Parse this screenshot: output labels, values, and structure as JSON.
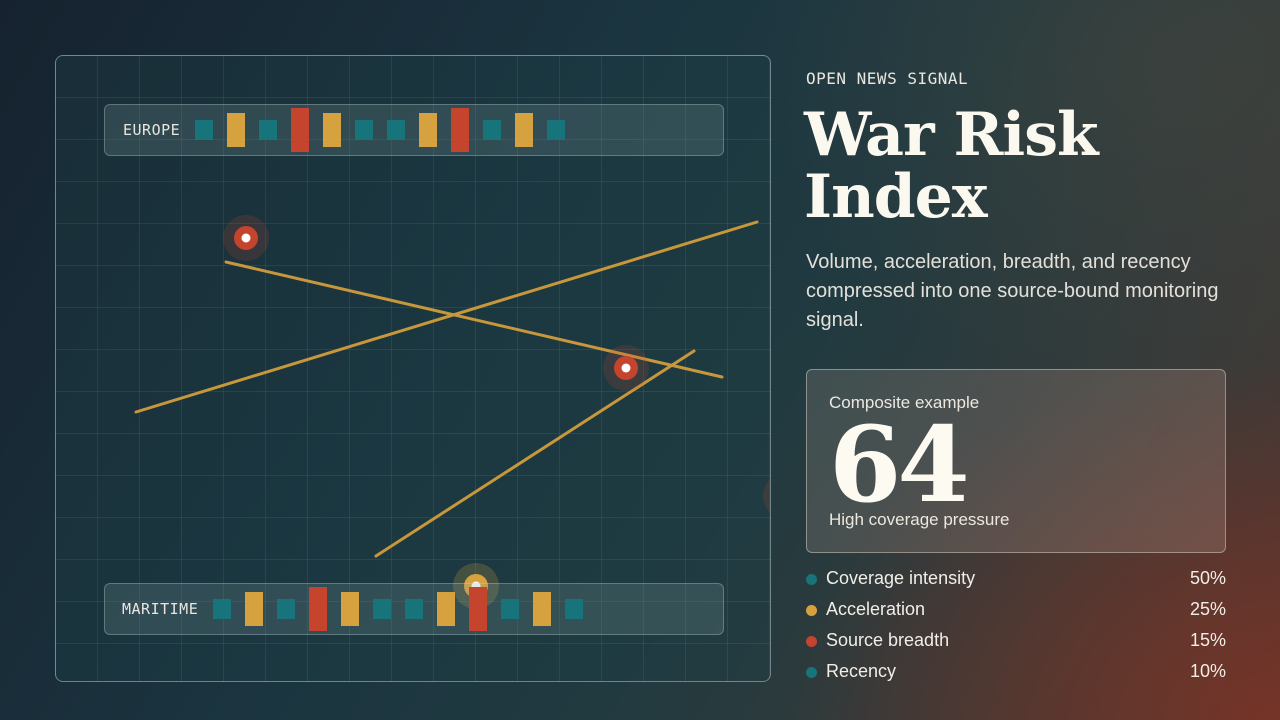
{
  "kicker": "OPEN NEWS SIGNAL",
  "title": "War Risk Index",
  "subtitle": "Volume, acceleration, breadth, and recency compressed into one source-bound monitoring signal.",
  "colors": {
    "teal": "#17747a",
    "gold": "#d6a23f",
    "red": "#c4442e",
    "line": "#c8973c"
  },
  "regions": {
    "europe": {
      "label": "EUROPE",
      "ticks": [
        "teal",
        "gold",
        "teal",
        "red",
        "gold",
        "teal",
        "teal",
        "gold",
        "red",
        "teal",
        "gold",
        "teal"
      ]
    },
    "maritime": {
      "label": "MARITIME",
      "ticks": [
        "teal",
        "gold",
        "teal",
        "red",
        "gold",
        "teal",
        "teal",
        "gold",
        "red",
        "teal",
        "gold",
        "teal"
      ]
    }
  },
  "composite": {
    "label": "Composite example",
    "value": "64",
    "note": "High coverage pressure"
  },
  "legend": [
    {
      "label": "Coverage intensity",
      "value": "50%",
      "color": "teal"
    },
    {
      "label": "Acceleration",
      "value": "25%",
      "color": "gold"
    },
    {
      "label": "Source breadth",
      "value": "15%",
      "color": "red"
    },
    {
      "label": "Recency",
      "value": "10%",
      "color": "teal"
    }
  ]
}
